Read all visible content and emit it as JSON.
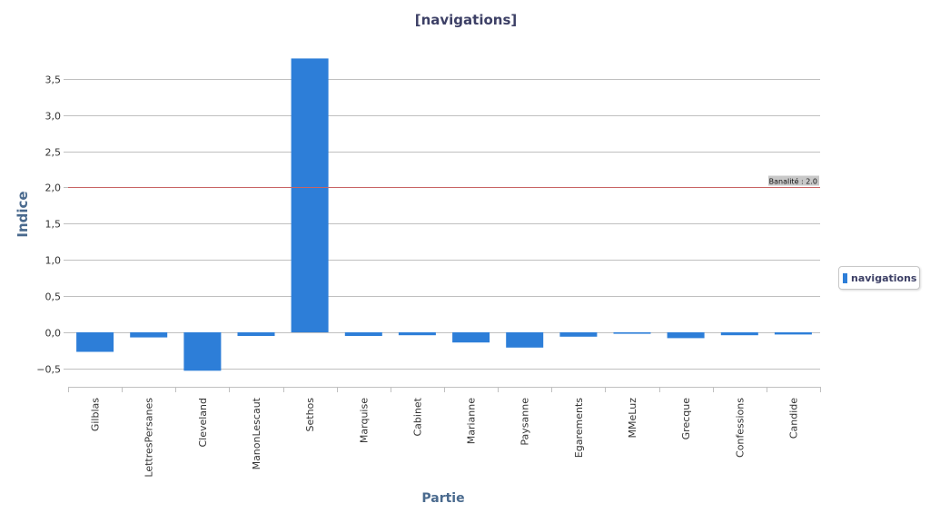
{
  "colors": {
    "bar": "#2d7ed8",
    "grid": "#c0c0c0",
    "reference_line": "#c86464",
    "reference_label_bg": "#c8c8c8"
  },
  "legend": {
    "placement": "right",
    "label": "navigations",
    "icon": "legend-bar-swatch"
  },
  "chart_data": {
    "type": "bar",
    "title": "[navigations]",
    "xlabel": "Partie",
    "ylabel": "Indice",
    "ylim": [
      -0.75,
      3.85
    ],
    "yticks": [
      -0.5,
      0.0,
      0.5,
      1.0,
      1.5,
      2.0,
      2.5,
      3.0,
      3.5
    ],
    "ytick_labels": [
      "−0,5",
      "0,0",
      "0,5",
      "1,0",
      "1,5",
      "2,0",
      "2,5",
      "3,0",
      "3,5"
    ],
    "grid": true,
    "categories": [
      "Gilblas",
      "LettresPersanes",
      "Cleveland",
      "ManonLescaut",
      "Sethos",
      "Marquise",
      "Cabinet",
      "Marianne",
      "Paysanne",
      "Egarements",
      "MMeLuz",
      "Grecque",
      "Confessions",
      "Candide"
    ],
    "series": [
      {
        "name": "navigations",
        "values": [
          -0.27,
          -0.07,
          -0.53,
          -0.05,
          3.78,
          -0.05,
          -0.04,
          -0.14,
          -0.21,
          -0.06,
          -0.02,
          -0.08,
          -0.04,
          -0.03
        ]
      }
    ],
    "reference_line": {
      "value": 2.0,
      "label": "Banalité : 2.0"
    }
  }
}
